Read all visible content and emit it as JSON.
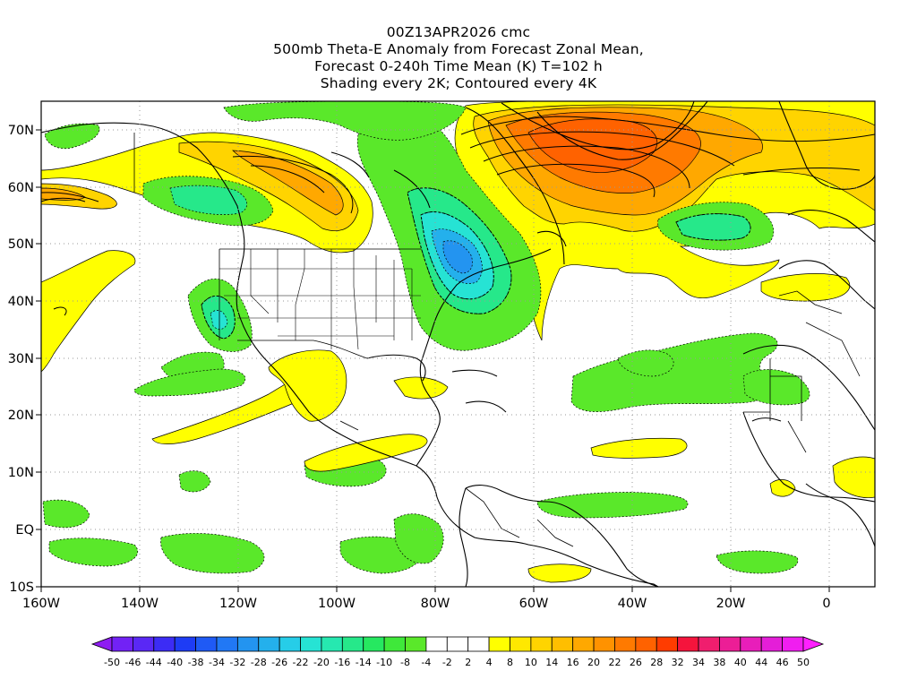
{
  "title": {
    "line1": "00Z13APR2026 cmc",
    "line2": "500mb Theta-E Anomaly from Forecast Zonal Mean,",
    "line3": "Forecast 0-240h Time Mean (K) T=102 h",
    "line4": "Shading every 2K; Contoured every 4K"
  },
  "axes": {
    "lat_labels": [
      "70N",
      "60N",
      "50N",
      "40N",
      "30N",
      "20N",
      "10N",
      "EQ",
      "10S"
    ],
    "lon_labels": [
      "160W",
      "140W",
      "120W",
      "100W",
      "80W",
      "60W",
      "40W",
      "20W",
      "0"
    ]
  },
  "colorbar": {
    "labels": [
      "-50",
      "-46",
      "-44",
      "-40",
      "-38",
      "-34",
      "-32",
      "-28",
      "-26",
      "-22",
      "-20",
      "-16",
      "-14",
      "-10",
      "-8",
      "-4",
      "-2",
      "2",
      "4",
      "8",
      "10",
      "14",
      "16",
      "20",
      "22",
      "26",
      "28",
      "32",
      "34",
      "38",
      "40",
      "44",
      "46",
      "50"
    ],
    "colors": [
      "#8e1cf2",
      "#7222f5",
      "#5a28f5",
      "#3c2cf5",
      "#1e3cf5",
      "#1f5af5",
      "#2178f5",
      "#2394f0",
      "#24b0ec",
      "#26cde8",
      "#26e3d4",
      "#26e8b0",
      "#26e88a",
      "#26e860",
      "#3fe83a",
      "#5ae82a",
      "#ffffff",
      "#ffffff",
      "#ffffff",
      "#ffff00",
      "#ffe800",
      "#ffd400",
      "#ffbe00",
      "#ffa800",
      "#ff9200",
      "#ff7a00",
      "#ff6200",
      "#ff3c00",
      "#f5143c",
      "#f01e6e",
      "#ec1e96",
      "#e81eba",
      "#e41ed8",
      "#f01ef0",
      "#ff20ff"
    ],
    "negative_label_color": "#000000"
  },
  "field_colors": {
    "green": "#5ae82a",
    "light_green": "#26e88a",
    "teal": "#26e3d4",
    "cyan": "#24b0ec",
    "blue": "#2394f0",
    "yellow": "#ffff00",
    "gold": "#ffd400",
    "orange": "#ffa800",
    "dark_orange": "#ff7a00",
    "red_orange": "#ff6200"
  }
}
